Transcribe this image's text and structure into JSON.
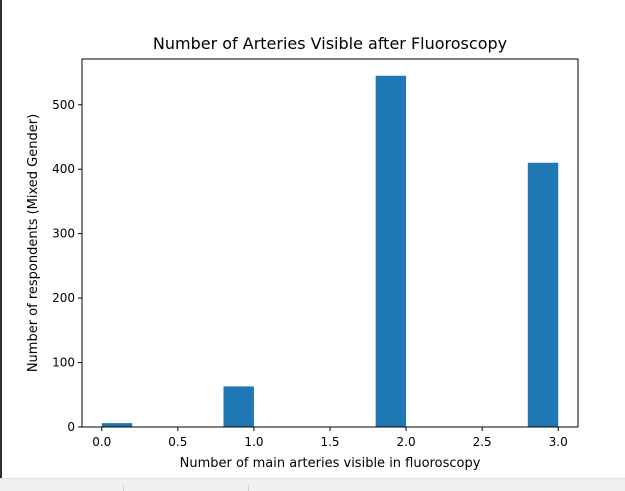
{
  "chart_data": {
    "type": "bar",
    "title": "Number of Arteries Visible after Fluoroscopy",
    "xlabel": "Number of main arteries visible in fluoroscopy",
    "ylabel": "Number of respondents (Mixed Gender)",
    "xlim": [
      -0.13,
      3.13
    ],
    "ylim": [
      0,
      571
    ],
    "x_ticks": [
      0.0,
      0.5,
      1.0,
      1.5,
      2.0,
      2.5,
      3.0
    ],
    "x_tick_labels": [
      "0.0",
      "0.5",
      "1.0",
      "1.5",
      "2.0",
      "2.5",
      "3.0"
    ],
    "y_ticks": [
      0,
      100,
      200,
      300,
      400,
      500
    ],
    "y_tick_labels": [
      "0",
      "100",
      "200",
      "300",
      "400",
      "500"
    ],
    "bars": [
      {
        "x_start": 0.0,
        "x_end": 0.2,
        "value": 6
      },
      {
        "x_start": 0.8,
        "x_end": 1.0,
        "value": 63
      },
      {
        "x_start": 1.8,
        "x_end": 2.0,
        "value": 545
      },
      {
        "x_start": 2.8,
        "x_end": 3.0,
        "value": 410
      }
    ],
    "bar_color": "#1f77b4",
    "grid": false,
    "legend": "none"
  }
}
